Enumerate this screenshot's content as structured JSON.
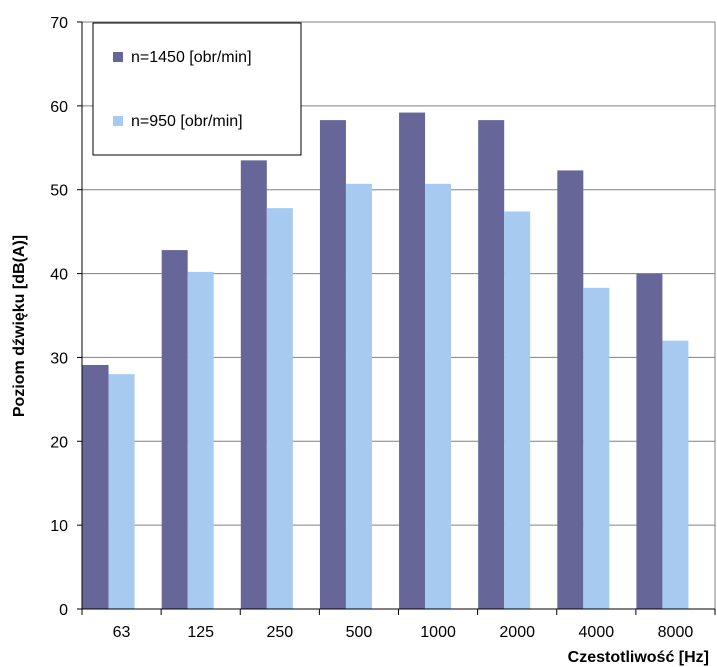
{
  "chart_data": {
    "type": "bar",
    "title": "",
    "xlabel": "Czestotliwość [Hz]",
    "ylabel": "Poziom dźwięku [dB(A)]",
    "categories": [
      "63",
      "125",
      "250",
      "500",
      "1000",
      "2000",
      "4000",
      "8000"
    ],
    "series": [
      {
        "name": "n=1450 [obr/min]",
        "color": "#666699",
        "values": [
          29.1,
          42.8,
          53.5,
          58.3,
          59.2,
          58.3,
          52.3,
          40.0
        ]
      },
      {
        "name": "n=950 [obr/min]",
        "color": "#a6caf0",
        "values": [
          28.0,
          40.2,
          47.8,
          50.7,
          50.7,
          47.4,
          38.3,
          32.0
        ]
      }
    ],
    "ylim": [
      0,
      70
    ],
    "yticks": [
      "0",
      "10",
      "20",
      "30",
      "40",
      "50",
      "60",
      "70"
    ],
    "grid": true,
    "legend_position": "top-left"
  }
}
